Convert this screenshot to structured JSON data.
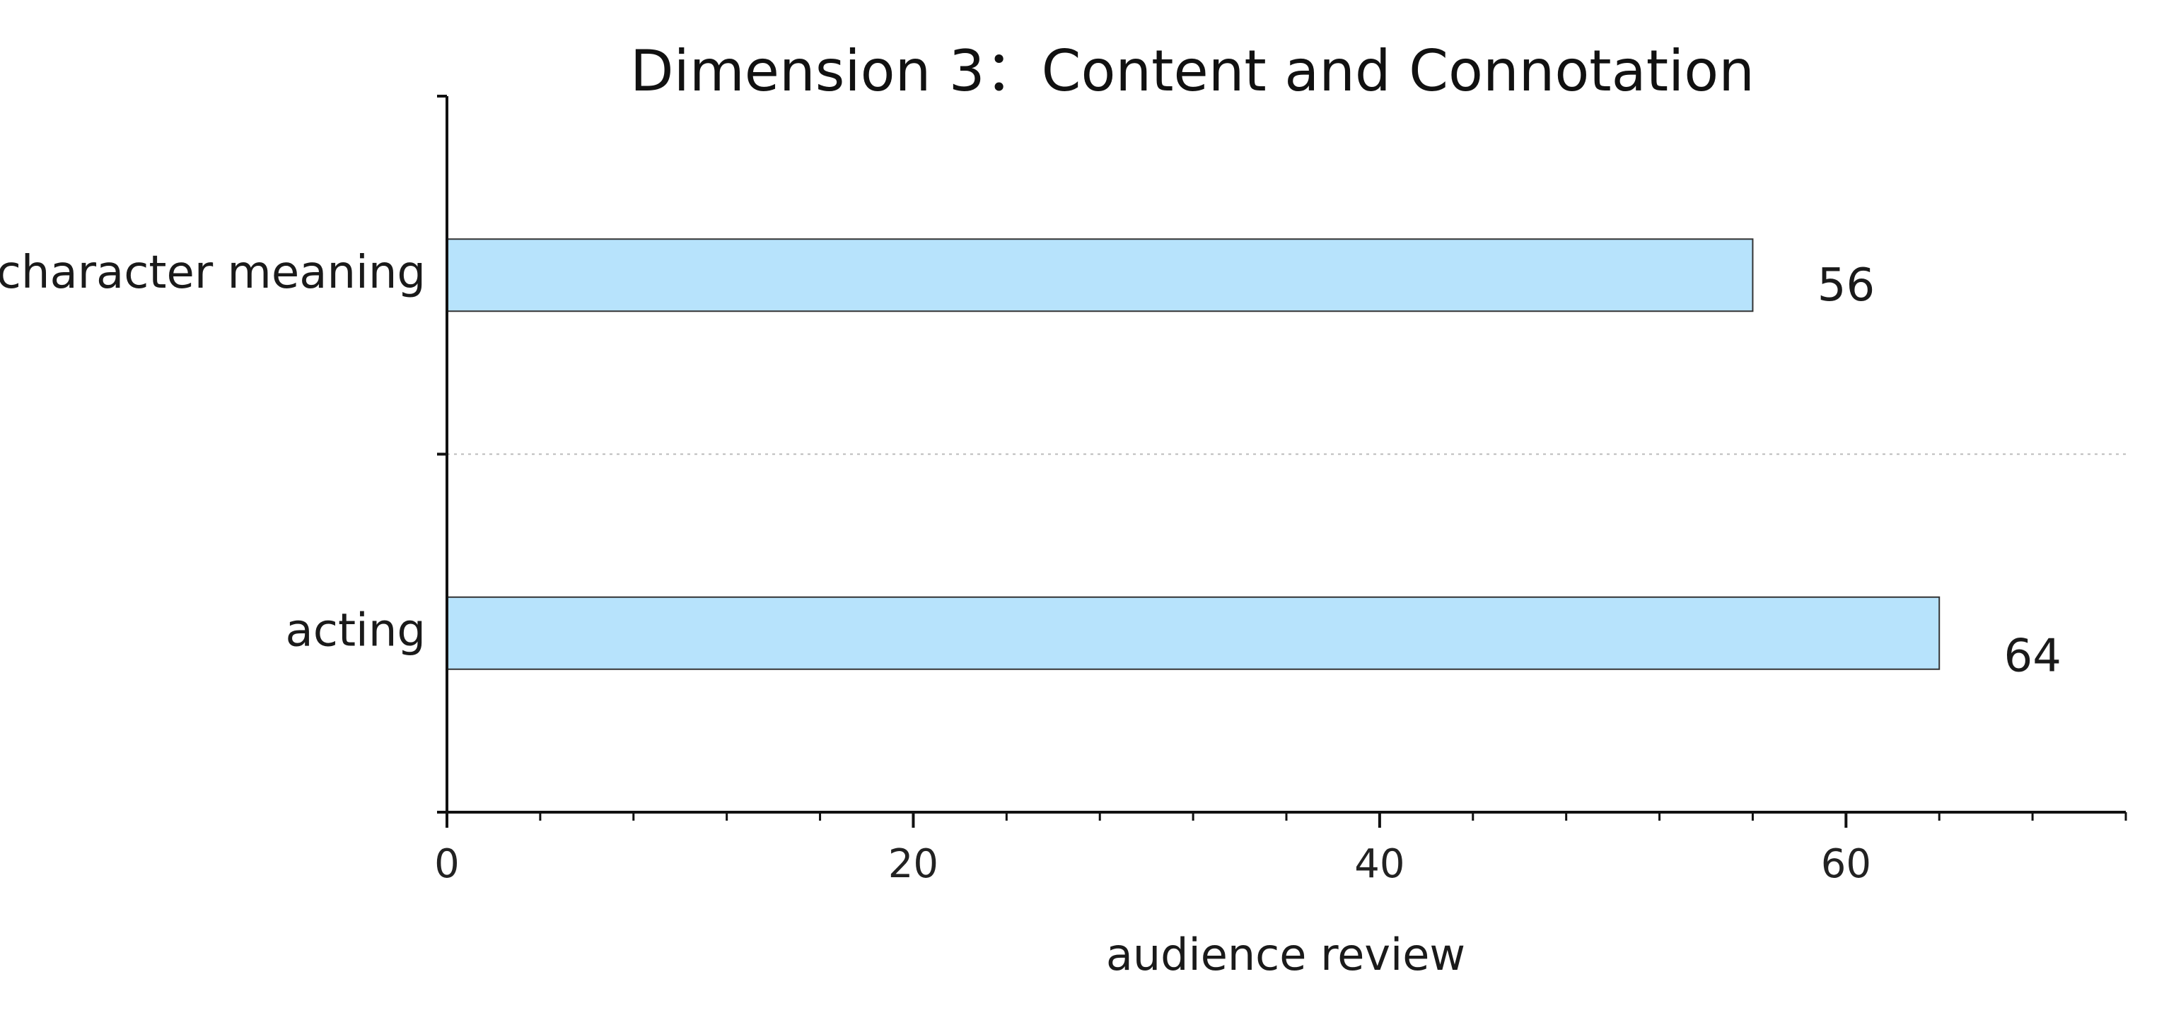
{
  "chart_data": {
    "type": "bar",
    "orientation": "horizontal",
    "title": "Dimension 3：Content and Connotation",
    "xlabel": "audience review",
    "ylabel": "",
    "categories": [
      "character meaning",
      "acting"
    ],
    "values": [
      56,
      64
    ],
    "data_labels": [
      "56",
      "64"
    ],
    "xlim": [
      0,
      72
    ],
    "x_ticks": [
      0,
      20,
      40,
      60
    ],
    "x_tick_labels": [
      "0",
      "20",
      "40",
      "60"
    ],
    "x_minor_step": 4,
    "grid": "dotted separator between categories",
    "legend": "none",
    "bar_color": "#b7e3fc",
    "bar_edge_color": "#333333"
  }
}
